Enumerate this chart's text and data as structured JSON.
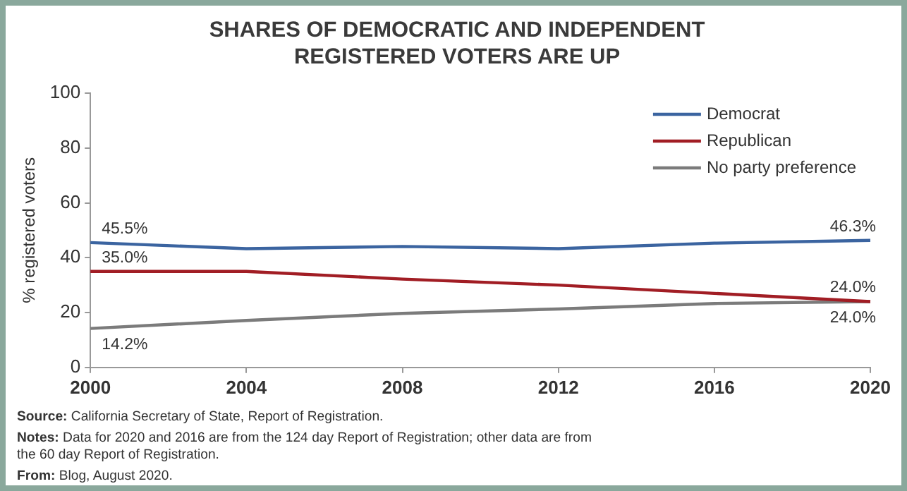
{
  "chart_data": {
    "type": "line",
    "title": "SHARES OF DEMOCRATIC AND INDEPENDENT REGISTERED VOTERS ARE UP",
    "ylabel": "% registered voters",
    "x": [
      2000,
      2004,
      2008,
      2012,
      2016,
      2020
    ],
    "series": [
      {
        "name": "Democrat",
        "color": "#3b64a0",
        "values": [
          45.5,
          43.3,
          44.1,
          43.3,
          45.3,
          46.3
        ],
        "value_labels": [
          "45.5%",
          null,
          null,
          null,
          null,
          "46.3%"
        ]
      },
      {
        "name": "Republican",
        "color": "#a11d24",
        "values": [
          35.0,
          35.0,
          32.2,
          30.0,
          27.0,
          24.0
        ],
        "value_labels": [
          "35.0%",
          null,
          null,
          null,
          null,
          "24.0%"
        ]
      },
      {
        "name": "No party preference",
        "color": "#7b7b7b",
        "values": [
          14.2,
          17.1,
          19.7,
          21.3,
          23.3,
          24.0
        ],
        "value_labels": [
          "14.2%",
          null,
          null,
          null,
          null,
          "24.0%"
        ]
      }
    ],
    "xlim": [
      2000,
      2020
    ],
    "xticks": [
      2000,
      2004,
      2008,
      2012,
      2016,
      2020
    ],
    "ylim": [
      0,
      100
    ],
    "yticks": [
      0,
      20,
      40,
      60,
      80,
      100
    ],
    "grid": false,
    "legend": "top right",
    "marker": "none",
    "line_style": "solid",
    "annotations": [
      "Source: California Secretary of State, Report of Registration.",
      "Notes: Data for 2020 and 2016 are from the 124 day Report of Registration; other data are from the 60 day Report of Registration.",
      "From: Blog, August 2020."
    ]
  }
}
